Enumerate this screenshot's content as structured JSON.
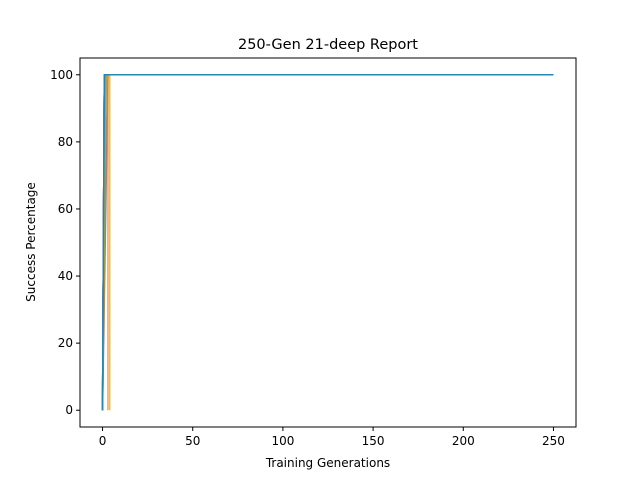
{
  "chart_data": {
    "type": "line",
    "title": "250-Gen 21-deep Report",
    "xlabel": "Training Generations",
    "ylabel": "Success Percentage",
    "xlim": [
      -12.5,
      262.5
    ],
    "ylim": [
      -5,
      105
    ],
    "xticks": [
      0,
      50,
      100,
      150,
      200,
      250
    ],
    "yticks": [
      0,
      20,
      40,
      60,
      80,
      100
    ],
    "grid": false,
    "legend": "none",
    "series": [
      {
        "color": "#1f77b4",
        "x": [
          0,
          1,
          250
        ],
        "y": [
          0,
          100,
          100
        ]
      },
      {
        "color": "#ff7f0e",
        "x": [
          0,
          2,
          250
        ],
        "y": [
          0,
          100,
          100
        ]
      },
      {
        "color": "#2ca02c",
        "x": [
          0,
          1,
          250
        ],
        "y": [
          0,
          100,
          100
        ]
      },
      {
        "color": "#d62728",
        "x": [
          0,
          1,
          250
        ],
        "y": [
          0,
          100,
          100
        ]
      },
      {
        "color": "#9467bd",
        "x": [
          0,
          2,
          250
        ],
        "y": [
          0,
          100,
          100
        ]
      },
      {
        "color": "#8c564b",
        "x": [
          0,
          3,
          250
        ],
        "y": [
          0,
          100,
          100
        ]
      },
      {
        "color": "#e377c2",
        "x": [
          0,
          1,
          250
        ],
        "y": [
          0,
          100,
          100
        ]
      },
      {
        "color": "#7f7f7f",
        "x": [
          0,
          1,
          250
        ],
        "y": [
          0,
          100,
          100
        ]
      },
      {
        "color": "#bcbd22",
        "x": [
          4,
          4,
          250
        ],
        "y": [
          0,
          100,
          100
        ]
      },
      {
        "color": "#17becf",
        "x": [
          0,
          1,
          250
        ],
        "y": [
          0,
          100,
          100
        ]
      },
      {
        "color": "#1f77b4",
        "x": [
          0,
          1,
          250
        ],
        "y": [
          0,
          100,
          100
        ]
      },
      {
        "color": "#ff7f0e",
        "x": [
          3,
          3,
          4,
          250
        ],
        "y": [
          0,
          100,
          100,
          100
        ]
      },
      {
        "color": "#2ca02c",
        "x": [
          0,
          1,
          250
        ],
        "y": [
          0,
          100,
          100
        ]
      },
      {
        "color": "#d62728",
        "x": [
          0,
          1,
          250
        ],
        "y": [
          0,
          100,
          100
        ]
      },
      {
        "color": "#9467bd",
        "x": [
          0,
          1,
          250
        ],
        "y": [
          0,
          100,
          100
        ]
      },
      {
        "color": "#8c564b",
        "x": [
          0,
          2,
          250
        ],
        "y": [
          0,
          100,
          100
        ]
      },
      {
        "color": "#e377c2",
        "x": [
          0,
          1,
          250
        ],
        "y": [
          0,
          100,
          100
        ]
      },
      {
        "color": "#7f7f7f",
        "x": [
          0,
          1,
          250
        ],
        "y": [
          0,
          100,
          100
        ]
      },
      {
        "color": "#bcbd22",
        "x": [
          0,
          2,
          250
        ],
        "y": [
          0,
          100,
          100
        ]
      },
      {
        "color": "#17becf",
        "x": [
          0,
          1,
          250
        ],
        "y": [
          0,
          100,
          100
        ]
      },
      {
        "color": "#1f77b4",
        "x": [
          0,
          1,
          250
        ],
        "y": [
          0,
          100,
          100
        ]
      }
    ]
  }
}
